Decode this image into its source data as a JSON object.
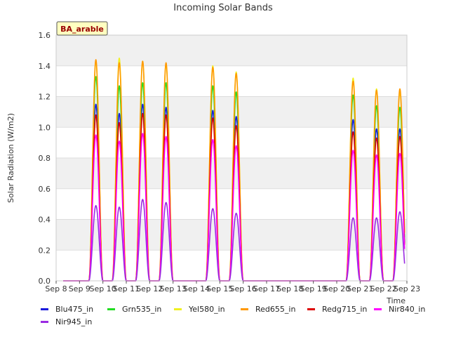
{
  "chart_data": {
    "type": "line",
    "title": "Incoming Solar Bands",
    "xlabel": "Time",
    "ylabel": "Solar Radiation (W/m2)",
    "annotation": "BA_arable",
    "xlim": [
      8,
      23
    ],
    "ylim": [
      0,
      1.6
    ],
    "yticks": [
      0.0,
      0.2,
      0.4,
      0.6,
      0.8,
      1.0,
      1.2,
      1.4,
      1.6
    ],
    "xticks": [
      {
        "value": 8,
        "label": "Sep 8"
      },
      {
        "value": 9,
        "label": "Sep 9"
      },
      {
        "value": 10,
        "label": "Sep 10"
      },
      {
        "value": 11,
        "label": "Sep 11"
      },
      {
        "value": 12,
        "label": "Sep 12"
      },
      {
        "value": 13,
        "label": "Sep 13"
      },
      {
        "value": 14,
        "label": "Sep 14"
      },
      {
        "value": 15,
        "label": "Sep 15"
      },
      {
        "value": 16,
        "label": "Sep 16"
      },
      {
        "value": 17,
        "label": "Sep 17"
      },
      {
        "value": 18,
        "label": "Sep 18"
      },
      {
        "value": 19,
        "label": "Sep 19"
      },
      {
        "value": 20,
        "label": "Sep 20"
      },
      {
        "value": 21,
        "label": "Sep 21"
      },
      {
        "value": 22,
        "label": "Sep 22"
      },
      {
        "value": 23,
        "label": "Sep 23"
      }
    ],
    "day_centers": [
      9.7,
      10.7,
      11.7,
      12.7,
      14.7,
      15.7,
      20.7,
      21.7,
      22.7
    ],
    "data_range": [
      8.3,
      22.9
    ],
    "legend_position": "bottom",
    "series": [
      {
        "name": "Blu475_in",
        "color": "#1a1adc",
        "peaks": [
          1.15,
          1.09,
          1.15,
          1.13,
          1.11,
          1.07,
          1.05,
          0.99,
          0.99
        ]
      },
      {
        "name": "Grn535_in",
        "color": "#22dd22",
        "peaks": [
          1.33,
          1.27,
          1.29,
          1.29,
          1.27,
          1.23,
          1.21,
          1.14,
          1.13
        ]
      },
      {
        "name": "Yel580_in",
        "color": "#f0f020",
        "peaks": [
          1.43,
          1.45,
          1.43,
          1.41,
          1.4,
          1.36,
          1.32,
          1.25,
          1.23
        ]
      },
      {
        "name": "Red655_in",
        "color": "#ff9900",
        "peaks": [
          1.44,
          1.42,
          1.43,
          1.42,
          1.39,
          1.35,
          1.3,
          1.24,
          1.25
        ]
      },
      {
        "name": "Redg715_in",
        "color": "#dd0000",
        "peaks": [
          1.08,
          1.03,
          1.09,
          1.08,
          1.06,
          1.01,
          0.97,
          0.93,
          0.94
        ]
      },
      {
        "name": "Nir840_in",
        "color": "#ff00ff",
        "peaks": [
          0.95,
          0.91,
          0.96,
          0.94,
          0.92,
          0.88,
          0.85,
          0.82,
          0.83
        ]
      },
      {
        "name": "Nir945_in",
        "color": "#9a2be2",
        "peaks": [
          0.49,
          0.48,
          0.53,
          0.51,
          0.47,
          0.44,
          0.41,
          0.41,
          0.45
        ]
      }
    ]
  }
}
